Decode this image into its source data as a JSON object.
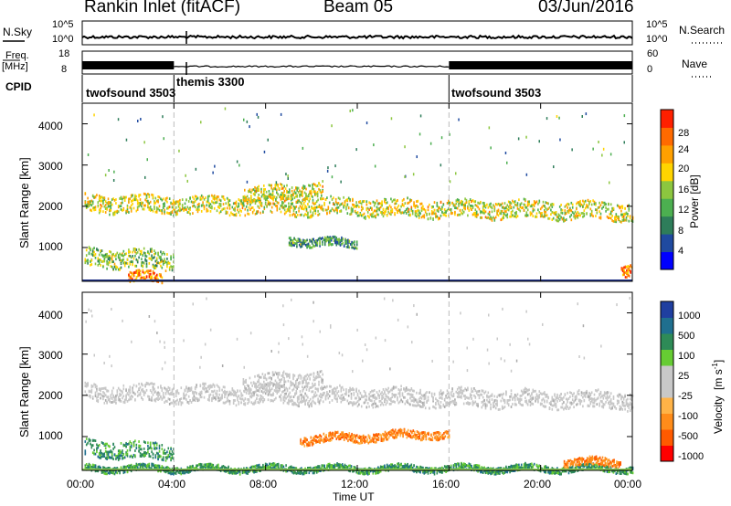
{
  "header": {
    "title": "Rankin Inlet (fitACF)",
    "beam": "Beam 05",
    "date": "03/Jun/2016"
  },
  "top_panels": {
    "nsky": {
      "label": "N.Sky",
      "ticks": [
        "10^5",
        "10^0"
      ],
      "right_label": "N.Search",
      "right_ticks": [
        "10^5",
        "10^0"
      ]
    },
    "freq": {
      "label_line1": "Freq.",
      "label_line2": "[MHz]",
      "ticks": [
        "18",
        "8"
      ],
      "right_label": "Nave",
      "right_ticks": [
        "60",
        "0"
      ]
    },
    "cpid": {
      "label": "CPID",
      "modes": [
        {
          "name": "twofsound 3503",
          "start_hour": 0,
          "end_hour": 4
        },
        {
          "name": "themis 3300",
          "start_hour": 4,
          "end_hour": 16
        },
        {
          "name": "twofsound 3503",
          "start_hour": 16,
          "end_hour": 24
        }
      ]
    }
  },
  "colors": {
    "power_scale": [
      "#0000ff",
      "#1f4aa0",
      "#2e7d5a",
      "#4caf50",
      "#8cc63f",
      "#ffd400",
      "#ffa000",
      "#ff6a00",
      "#ff2000"
    ],
    "velocity_scale": [
      "#ff0000",
      "#ff5a00",
      "#ff8c1a",
      "#ffb347",
      "#c8c8c8",
      "#c8c8c8",
      "#66cc33",
      "#2e8b57",
      "#1f6f8f",
      "#1f3fa0"
    ],
    "gray": "#c8c8c8"
  },
  "chart_data": [
    {
      "type": "heatmap",
      "title": "",
      "ylabel": "Slant Range [km]",
      "xlabel": "",
      "xlim": [
        0,
        24
      ],
      "ylim": [
        180,
        4500
      ],
      "yticks": [
        "1000",
        "2000",
        "3000",
        "4000"
      ],
      "colorbar": {
        "label": "Power [dB]",
        "ticks": [
          "4",
          "8",
          "12",
          "16",
          "20",
          "24",
          "28"
        ],
        "range": [
          0,
          30
        ]
      },
      "bands": [
        {
          "x_start": 0.1,
          "x_end": 24.0,
          "range_center_start": 2100,
          "range_center_end": 1900,
          "thickness": 420,
          "peak_db": 20
        },
        {
          "x_start": 7.0,
          "x_end": 10.5,
          "range_center_start": 2300,
          "range_center_end": 2450,
          "thickness": 350,
          "peak_db": 18
        },
        {
          "x_start": 0.1,
          "x_end": 4.0,
          "range_center_start": 800,
          "range_center_end": 700,
          "thickness": 450,
          "peak_db": 16
        },
        {
          "x_start": 2.0,
          "x_end": 3.5,
          "range_center_start": 300,
          "range_center_end": 300,
          "thickness": 250,
          "peak_db": 28
        },
        {
          "x_start": 9.0,
          "x_end": 12.0,
          "range_center_start": 1200,
          "range_center_end": 1100,
          "thickness": 200,
          "peak_db": 12
        },
        {
          "x_start": 23.5,
          "x_end": 24.0,
          "range_center_start": 500,
          "range_center_end": 500,
          "thickness": 300,
          "peak_db": 28
        }
      ]
    },
    {
      "type": "heatmap",
      "title": "",
      "ylabel": "Slant Range [km]",
      "xlabel": "Time UT",
      "xlim": [
        0,
        24
      ],
      "ylim": [
        180,
        4500
      ],
      "xticks": [
        "00:00",
        "04:00",
        "08:00",
        "12:00",
        "16:00",
        "20:00",
        "00:00"
      ],
      "yticks": [
        "1000",
        "2000",
        "3000",
        "4000"
      ],
      "colorbar": {
        "label_main": "Velocity",
        "label_unit": "[m s",
        "label_exp": "-1",
        "label_close": "]",
        "ticks": [
          "1000",
          "500",
          "100",
          "25",
          "-25",
          "-100",
          "-500",
          "-1000"
        ],
        "range": [
          -1000,
          1000
        ]
      },
      "bands": [
        {
          "x_start": 0.1,
          "x_end": 24.0,
          "range_center_start": 2100,
          "range_center_end": 1900,
          "thickness": 420,
          "velocity": 0
        },
        {
          "x_start": 7.0,
          "x_end": 10.5,
          "range_center_start": 2300,
          "range_center_end": 2450,
          "thickness": 350,
          "velocity": 0
        },
        {
          "x_start": 0.1,
          "x_end": 4.0,
          "range_center_start": 750,
          "range_center_end": 650,
          "thickness": 400,
          "velocity": 200
        },
        {
          "x_start": 9.5,
          "x_end": 16.0,
          "range_center_start": 950,
          "range_center_end": 1100,
          "thickness": 200,
          "velocity": -300
        },
        {
          "x_start": 0.1,
          "x_end": 24.0,
          "range_center_start": 250,
          "range_center_end": 250,
          "thickness": 150,
          "velocity": 80
        },
        {
          "x_start": 21.0,
          "x_end": 23.5,
          "range_center_start": 400,
          "range_center_end": 400,
          "thickness": 200,
          "velocity": -300
        }
      ]
    }
  ]
}
